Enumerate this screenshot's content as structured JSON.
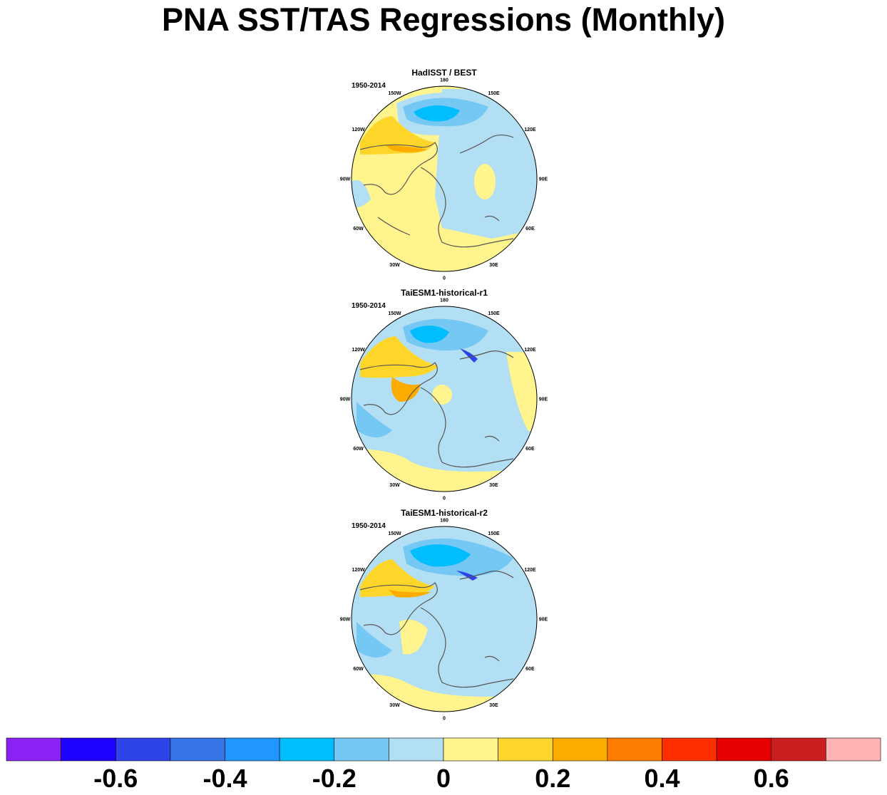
{
  "title": "PNA SST/TAS Regressions (Monthly)",
  "panels": [
    {
      "title": "HadISST / BEST",
      "period": "1950-2014"
    },
    {
      "title": "TaiESM1-historical-r1",
      "period": "1950-2014"
    },
    {
      "title": "TaiESM1-historical-r2",
      "period": "1950-2014"
    }
  ],
  "longitude_labels": [
    "180",
    "150E",
    "120E",
    "90E",
    "60E",
    "30E",
    "0",
    "30W",
    "60W",
    "90W",
    "120W",
    "150W"
  ],
  "colorbar": {
    "colors": [
      "#8b22f5",
      "#1e00fe",
      "#2e44e8",
      "#3574e4",
      "#2096fe",
      "#00bdfd",
      "#75c8f3",
      "#b2dff3",
      "#fff48e",
      "#fed62a",
      "#feab00",
      "#fe7d00",
      "#fe2e00",
      "#e60000",
      "#cb1e1e",
      "#ffb3b3"
    ],
    "labels": [
      "-0.6",
      "-0.4",
      "-0.2",
      "0",
      "0.2",
      "0.4",
      "0.6"
    ]
  }
}
